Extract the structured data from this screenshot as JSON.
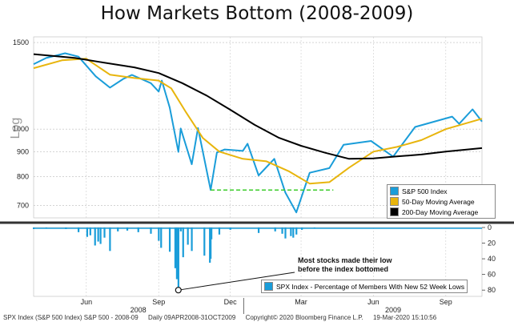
{
  "title": "How Markets Bottom (2008-2009)",
  "colors": {
    "spx": "#1a9dd9",
    "ma50": "#e8b50d",
    "ma200": "#000000",
    "lows": "#1a9dd9",
    "hline": "#3bcc2a",
    "divider": "#333333"
  },
  "chart_data": [
    {
      "type": "line",
      "y_scale": "log",
      "ylabel": "Log",
      "yticks": [
        700,
        800,
        900,
        1000,
        1500
      ],
      "ylim": [
        660,
        1540
      ],
      "x_ticks": [
        "Jun",
        "Sep",
        "Dec",
        "Mar",
        "Jun",
        "Sep"
      ],
      "year_labels": [
        "2008",
        "2009"
      ],
      "x_range": [
        "2008-04-09",
        "2009-10-31"
      ],
      "grid": true,
      "legend_position": "bottom-right",
      "series": [
        {
          "name": "S&P 500 Index",
          "points": [
            [
              "2008-04-09",
              1355
            ],
            [
              "2008-04-25",
              1395
            ],
            [
              "2008-05-19",
              1426
            ],
            [
              "2008-06-05",
              1404
            ],
            [
              "2008-06-27",
              1280
            ],
            [
              "2008-07-15",
              1214
            ],
            [
              "2008-08-01",
              1265
            ],
            [
              "2008-08-12",
              1289
            ],
            [
              "2008-09-05",
              1240
            ],
            [
              "2008-09-15",
              1192
            ],
            [
              "2008-09-19",
              1255
            ],
            [
              "2008-09-29",
              1106
            ],
            [
              "2008-10-10",
              899
            ],
            [
              "2008-10-13",
              1003
            ],
            [
              "2008-10-27",
              848
            ],
            [
              "2008-11-04",
              1005
            ],
            [
              "2008-11-20",
              752
            ],
            [
              "2008-11-28",
              896
            ],
            [
              "2008-12-08",
              909
            ],
            [
              "2008-12-31",
              903
            ],
            [
              "2009-01-06",
              934
            ],
            [
              "2009-01-20",
              805
            ],
            [
              "2009-02-09",
              870
            ],
            [
              "2009-02-23",
              743
            ],
            [
              "2009-03-09",
              677
            ],
            [
              "2009-03-26",
              815
            ],
            [
              "2009-04-20",
              833
            ],
            [
              "2009-05-08",
              929
            ],
            [
              "2009-06-12",
              946
            ],
            [
              "2009-07-10",
              879
            ],
            [
              "2009-08-07",
              1010
            ],
            [
              "2009-09-23",
              1060
            ],
            [
              "2009-10-02",
              1025
            ],
            [
              "2009-10-19",
              1097
            ],
            [
              "2009-10-31",
              1036
            ]
          ]
        },
        {
          "name": "50-Day Moving Average",
          "points": [
            [
              "2008-04-09",
              1330
            ],
            [
              "2008-05-15",
              1380
            ],
            [
              "2008-06-15",
              1390
            ],
            [
              "2008-07-15",
              1290
            ],
            [
              "2008-08-15",
              1270
            ],
            [
              "2008-09-15",
              1255
            ],
            [
              "2008-10-01",
              1210
            ],
            [
              "2008-10-20",
              1080
            ],
            [
              "2008-11-10",
              960
            ],
            [
              "2008-12-01",
              900
            ],
            [
              "2008-12-31",
              870
            ],
            [
              "2009-01-30",
              860
            ],
            [
              "2009-02-28",
              820
            ],
            [
              "2009-03-26",
              775
            ],
            [
              "2009-04-20",
              780
            ],
            [
              "2009-05-15",
              835
            ],
            [
              "2009-06-15",
              900
            ],
            [
              "2009-07-15",
              920
            ],
            [
              "2009-08-15",
              950
            ],
            [
              "2009-09-15",
              1000
            ],
            [
              "2009-10-31",
              1050
            ]
          ]
        },
        {
          "name": "200-Day Moving Average",
          "points": [
            [
              "2008-04-09",
              1420
            ],
            [
              "2008-06-01",
              1395
            ],
            [
              "2008-07-01",
              1370
            ],
            [
              "2008-08-15",
              1335
            ],
            [
              "2008-09-15",
              1300
            ],
            [
              "2008-10-15",
              1240
            ],
            [
              "2008-11-15",
              1170
            ],
            [
              "2008-12-15",
              1095
            ],
            [
              "2009-01-15",
              1020
            ],
            [
              "2009-02-15",
              960
            ],
            [
              "2009-03-15",
              925
            ],
            [
              "2009-04-15",
              895
            ],
            [
              "2009-05-15",
              870
            ],
            [
              "2009-06-15",
              872
            ],
            [
              "2009-07-15",
              880
            ],
            [
              "2009-08-15",
              888
            ],
            [
              "2009-09-15",
              900
            ],
            [
              "2009-10-31",
              915
            ]
          ]
        }
      ],
      "reference_line": {
        "value": 752,
        "from": "2008-11-20",
        "to": "2009-04-25"
      }
    },
    {
      "type": "bar",
      "yticks": [
        0,
        20,
        40,
        60,
        80
      ],
      "ylim": [
        0,
        88
      ],
      "legend_position": "bottom-right",
      "series": [
        {
          "name": "SPX Index - Percentage of Members With New 52 Week Lows",
          "points": [
            [
              "2008-04-09",
              2
            ],
            [
              "2008-04-25",
              1
            ],
            [
              "2008-05-20",
              2
            ],
            [
              "2008-06-05",
              6
            ],
            [
              "2008-06-16",
              12
            ],
            [
              "2008-06-20",
              10
            ],
            [
              "2008-06-26",
              23
            ],
            [
              "2008-06-30",
              18
            ],
            [
              "2008-07-03",
              21
            ],
            [
              "2008-07-08",
              13
            ],
            [
              "2008-07-15",
              30
            ],
            [
              "2008-07-25",
              5
            ],
            [
              "2008-08-06",
              4
            ],
            [
              "2008-08-20",
              6
            ],
            [
              "2008-09-05",
              8
            ],
            [
              "2008-09-15",
              17
            ],
            [
              "2008-09-18",
              26
            ],
            [
              "2008-09-29",
              31
            ],
            [
              "2008-10-06",
              52
            ],
            [
              "2008-10-08",
              66
            ],
            [
              "2008-10-09",
              62
            ],
            [
              "2008-10-10",
              80
            ],
            [
              "2008-10-13",
              5
            ],
            [
              "2008-10-16",
              38
            ],
            [
              "2008-10-22",
              22
            ],
            [
              "2008-10-27",
              30
            ],
            [
              "2008-11-12",
              36
            ],
            [
              "2008-11-19",
              45
            ],
            [
              "2008-11-20",
              40
            ],
            [
              "2008-11-21",
              15
            ],
            [
              "2008-12-01",
              9
            ],
            [
              "2008-12-15",
              3
            ],
            [
              "2009-01-20",
              7
            ],
            [
              "2009-02-10",
              5
            ],
            [
              "2009-02-19",
              8
            ],
            [
              "2009-02-23",
              14
            ],
            [
              "2009-03-02",
              11
            ],
            [
              "2009-03-05",
              13
            ],
            [
              "2009-03-09",
              9
            ],
            [
              "2009-03-16",
              3
            ],
            [
              "2009-04-01",
              1
            ]
          ]
        }
      ],
      "annotation": {
        "text_lines": [
          "Most stocks made their low",
          "before the index bottomed"
        ],
        "marker_at": [
          "2008-10-10",
          80
        ]
      }
    }
  ],
  "footer": {
    "left": "SPX Index (S&P 500 Index) S&P 500 - 2008-09",
    "mid1": "Daily 09APR2008-31OCT2009",
    "mid2": "Copyright© 2020 Bloomberg Finance L.P.",
    "right": "19-Mar-2020 15:10:56"
  }
}
